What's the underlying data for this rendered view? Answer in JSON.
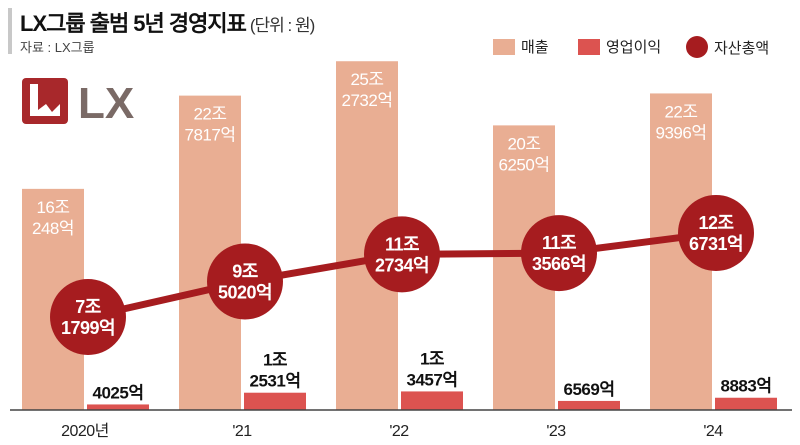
{
  "header": {
    "title": "LX그룹 출범 5년 경영지표",
    "unit": "(단위 : 원)",
    "source": "자료 : LX그룹"
  },
  "logo": {
    "text": "LX"
  },
  "legend": [
    {
      "label": "매출"
    },
    {
      "label": "영업이익"
    },
    {
      "label": "자산총액"
    }
  ],
  "colors": {
    "revenue": "#e9ae93",
    "op": "#dc5350",
    "assets": "#a61c1f"
  },
  "chart_data": {
    "type": "bar",
    "title": "LX그룹 출범 5년 경영지표",
    "categories": [
      "2020년",
      "'21",
      "'22",
      "'23",
      "'24"
    ],
    "series": [
      {
        "name": "매출",
        "unit": "조원",
        "values": [
          16.0248,
          22.7817,
          25.2732,
          20.625,
          22.9396
        ],
        "labels": [
          [
            "16조",
            "248억"
          ],
          [
            "22조",
            "7817억"
          ],
          [
            "25조",
            "2732억"
          ],
          [
            "20조",
            "6250억"
          ],
          [
            "22조",
            "9396억"
          ]
        ]
      },
      {
        "name": "영업이익",
        "unit": "조원",
        "values": [
          0.4025,
          1.2531,
          1.3457,
          0.6569,
          0.8883
        ],
        "labels": [
          [
            "",
            "4025억"
          ],
          [
            "1조",
            "2531억"
          ],
          [
            "1조",
            "3457억"
          ],
          [
            "",
            "6569억"
          ],
          [
            "",
            "8883억"
          ]
        ]
      },
      {
        "name": "자산총액",
        "type": "line",
        "unit": "조원",
        "values": [
          7.1799,
          9.502,
          11.2734,
          11.3566,
          12.6731
        ],
        "labels": [
          [
            "7조",
            "1799억"
          ],
          [
            "9조",
            "5020억"
          ],
          [
            "11조",
            "2734억"
          ],
          [
            "11조",
            "3566억"
          ],
          [
            "12조",
            "6731억"
          ]
        ]
      }
    ],
    "legend_position": "top-right"
  }
}
